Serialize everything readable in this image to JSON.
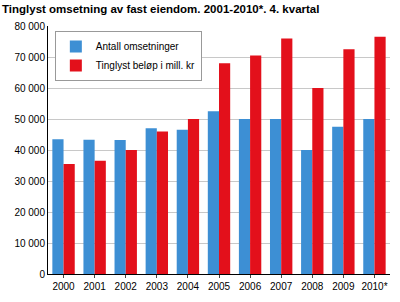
{
  "chart_data": {
    "type": "bar",
    "title": "Tinglyst omsetning av fast eiendom. 2001-2010*. 4. kvartal",
    "categories": [
      "2000",
      "2001",
      "2002",
      "2003",
      "2004",
      "2005",
      "2006",
      "2007",
      "2008",
      "2009",
      "2010*"
    ],
    "series": [
      {
        "name": "Antall omsetninger",
        "color": "#3d8fd4",
        "values": [
          43500,
          43300,
          43200,
          47000,
          46500,
          52500,
          50000,
          50000,
          40000,
          47500,
          50000
        ]
      },
      {
        "name": "Tinglyst beløp i mill. kr",
        "color": "#e3101b",
        "values": [
          35500,
          36500,
          40000,
          46000,
          50000,
          68000,
          70500,
          76000,
          60000,
          72500,
          76500
        ]
      }
    ],
    "ylim": [
      0,
      80000
    ],
    "yticks": [
      0,
      {
        "value": 10000,
        "label": "10 000"
      },
      {
        "value": 20000,
        "label": "20 000"
      },
      {
        "value": 30000,
        "label": "30 000"
      },
      {
        "value": 40000,
        "label": "40 000"
      },
      {
        "value": 50000,
        "label": "50 000"
      },
      {
        "value": 60000,
        "label": "60 000"
      },
      {
        "value": 70000,
        "label": "70 000"
      },
      {
        "value": 80000,
        "label": "80 000"
      }
    ],
    "grid": true,
    "legend": "top-left"
  }
}
